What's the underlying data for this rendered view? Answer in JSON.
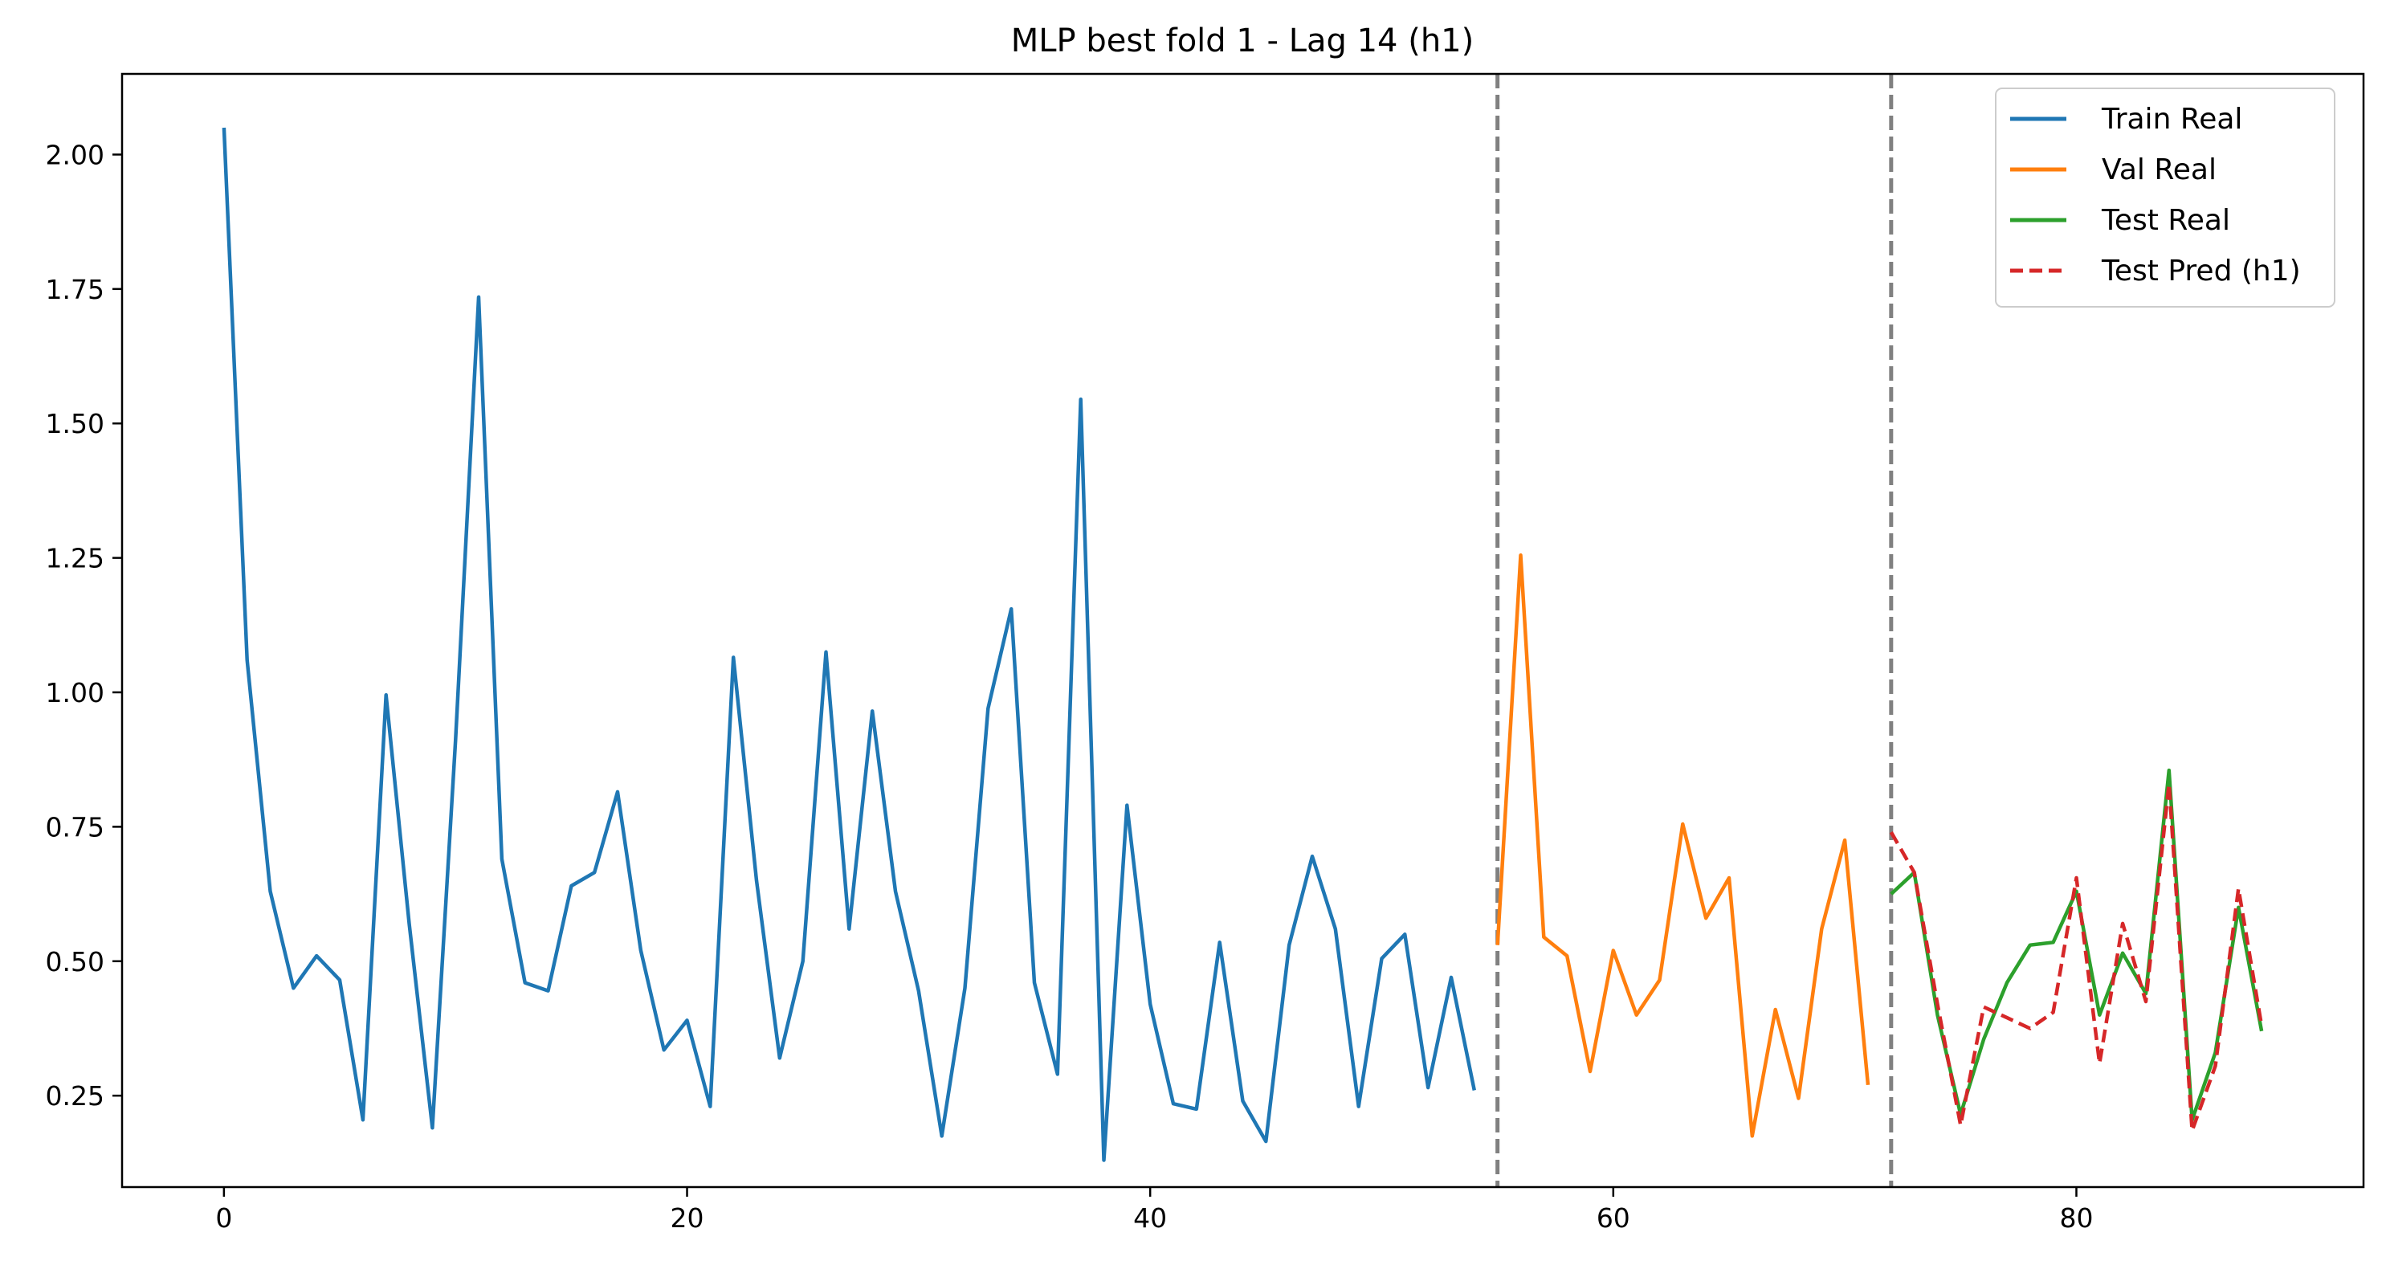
{
  "chart_data": {
    "type": "line",
    "title": "MLP best fold 1 - Lag 14 (h1)",
    "xlabel": "",
    "ylabel": "",
    "xlim": [
      -4.4,
      92.4
    ],
    "ylim": [
      0.08,
      2.15
    ],
    "xticks": [
      0,
      20,
      40,
      60,
      80
    ],
    "yticks": [
      0.25,
      0.5,
      0.75,
      1.0,
      1.25,
      1.5,
      1.75,
      2.0
    ],
    "ytick_labels": [
      "0.25",
      "0.50",
      "0.75",
      "1.00",
      "1.25",
      "1.50",
      "1.75",
      "2.00"
    ],
    "grid": false,
    "legend_position": "top-right",
    "vlines": [
      {
        "x": 55,
        "color": "#808080",
        "style": "dashed"
      },
      {
        "x": 72,
        "color": "#808080",
        "style": "dashed"
      }
    ],
    "series": [
      {
        "name": "Train Real",
        "color": "#1f77b4",
        "style": "solid",
        "x": [
          0,
          1,
          2,
          3,
          4,
          5,
          6,
          7,
          8,
          9,
          10,
          11,
          12,
          13,
          14,
          15,
          16,
          17,
          18,
          19,
          20,
          21,
          22,
          23,
          24,
          25,
          26,
          27,
          28,
          29,
          30,
          31,
          32,
          33,
          34,
          35,
          36,
          37,
          38,
          39,
          40,
          41,
          42,
          43,
          44,
          45,
          46,
          47,
          48,
          49,
          50,
          51,
          52,
          53,
          54
        ],
        "y": [
          2.05,
          1.06,
          0.63,
          0.45,
          0.51,
          0.465,
          0.205,
          0.995,
          0.57,
          0.19,
          0.91,
          1.735,
          0.69,
          0.46,
          0.445,
          0.64,
          0.665,
          0.815,
          0.52,
          0.335,
          0.39,
          0.23,
          1.065,
          0.65,
          0.32,
          0.5,
          1.075,
          0.56,
          0.965,
          0.63,
          0.445,
          0.175,
          0.45,
          0.97,
          1.155,
          0.46,
          0.29,
          1.545,
          0.13,
          0.79,
          0.42,
          0.235,
          0.225,
          0.535,
          0.24,
          0.165,
          0.53,
          0.695,
          0.56,
          0.23,
          0.505,
          0.55,
          0.265,
          0.47,
          0.26
        ]
      },
      {
        "name": "Val Real",
        "color": "#ff7f0e",
        "style": "solid",
        "x": [
          55,
          56,
          57,
          58,
          59,
          60,
          61,
          62,
          63,
          64,
          65,
          66,
          67,
          68,
          69,
          70,
          71
        ],
        "y": [
          0.53,
          1.255,
          0.545,
          0.51,
          0.295,
          0.52,
          0.4,
          0.465,
          0.755,
          0.58,
          0.655,
          0.175,
          0.41,
          0.245,
          0.56,
          0.725,
          0.27
        ]
      },
      {
        "name": "Test Real",
        "color": "#2ca02c",
        "style": "solid",
        "x": [
          72,
          73,
          74,
          75,
          76,
          77,
          78,
          79,
          80,
          81,
          82,
          83,
          84,
          85,
          86,
          87,
          88
        ],
        "y": [
          0.625,
          0.665,
          0.4,
          0.215,
          0.355,
          0.46,
          0.53,
          0.535,
          0.63,
          0.4,
          0.515,
          0.44,
          0.855,
          0.205,
          0.33,
          0.6,
          0.37
        ]
      },
      {
        "name": "Test Pred (h1)",
        "color": "#d62728",
        "style": "dashed",
        "x": [
          72,
          73,
          74,
          75,
          76,
          77,
          78,
          79,
          80,
          81,
          82,
          83,
          84,
          85,
          86,
          87,
          88
        ],
        "y": [
          0.74,
          0.665,
          0.42,
          0.195,
          0.415,
          0.395,
          0.375,
          0.405,
          0.655,
          0.31,
          0.57,
          0.425,
          0.83,
          0.185,
          0.305,
          0.635,
          0.38
        ]
      }
    ]
  }
}
